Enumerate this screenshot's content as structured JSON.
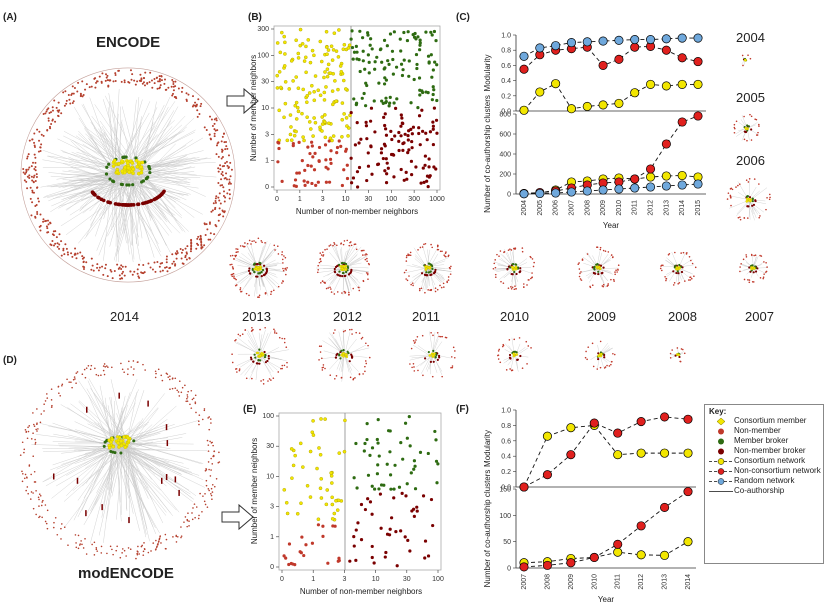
{
  "panel_labels": {
    "a": "(A)",
    "b": "(B)",
    "c": "(C)",
    "d": "(D)",
    "e": "(E)",
    "f": "(F)"
  },
  "titles": {
    "encode": "ENCODE",
    "modencode": "modENCODE"
  },
  "network_years": {
    "right_column": [
      "2004",
      "2005",
      "2006"
    ],
    "row_top": [
      "2014",
      "2013",
      "2012",
      "2011",
      "2010",
      "2009",
      "2008",
      "2007"
    ]
  },
  "colors": {
    "member": "#f2e600",
    "nonmember": "#c0392b",
    "member_broker": "#2e6b12",
    "nonmember_broker": "#7a0000",
    "random": "#6fa8dc",
    "edge": "#bdbdbd"
  },
  "panel_b": {
    "xlabel": "Number of non-member neighbors",
    "ylabel": "Number of member neighbors",
    "xticks": [
      "0",
      "1",
      "3",
      "10",
      "30",
      "100",
      "300",
      "1000"
    ],
    "yticks": [
      "0",
      "1",
      "3",
      "10",
      "30",
      "100",
      "300"
    ]
  },
  "panel_e": {
    "xlabel": "Number of non-member neighbors",
    "ylabel": "Number of member neighbors",
    "xticks": [
      "0",
      "1",
      "3",
      "10",
      "30",
      "100"
    ],
    "yticks": [
      "0",
      "1",
      "3",
      "10",
      "30",
      "100"
    ]
  },
  "chart_data": [
    {
      "type": "line",
      "panel": "C-top",
      "ylabel": "Modularity",
      "ylim": [
        0,
        1.0
      ],
      "yticks": [
        "0.0",
        "0.2",
        "0.4",
        "0.6",
        "0.8",
        "1.0"
      ],
      "x": [
        "2004",
        "2005",
        "2006",
        "2007",
        "2008",
        "2009",
        "2010",
        "2011",
        "2012",
        "2013",
        "2014",
        "2015"
      ],
      "series": [
        {
          "key": "consortium",
          "values": [
            0.01,
            0.25,
            0.36,
            0.03,
            0.06,
            0.08,
            0.1,
            0.24,
            0.35,
            0.33,
            0.35,
            0.35
          ]
        },
        {
          "key": "nonconsortium",
          "values": [
            0.55,
            0.74,
            0.8,
            0.82,
            0.84,
            0.6,
            0.68,
            0.84,
            0.85,
            0.8,
            0.7,
            0.65
          ]
        },
        {
          "key": "random",
          "values": [
            0.72,
            0.83,
            0.86,
            0.9,
            0.91,
            0.92,
            0.93,
            0.94,
            0.94,
            0.95,
            0.96,
            0.96
          ]
        }
      ]
    },
    {
      "type": "line",
      "panel": "C-bottom",
      "ylabel": "Number of co-authorship clusters",
      "xlabel": "Year",
      "ylim": [
        0,
        800
      ],
      "yticks": [
        "0",
        "200",
        "400",
        "600",
        "800"
      ],
      "x": [
        "2004",
        "2005",
        "2006",
        "2007",
        "2008",
        "2009",
        "2010",
        "2011",
        "2012",
        "2013",
        "2014",
        "2015"
      ],
      "series": [
        {
          "key": "consortium",
          "values": [
            5,
            10,
            40,
            120,
            130,
            150,
            160,
            150,
            170,
            180,
            185,
            170
          ]
        },
        {
          "key": "nonconsortium",
          "values": [
            5,
            15,
            30,
            60,
            90,
            110,
            120,
            150,
            250,
            500,
            720,
            780
          ]
        },
        {
          "key": "random",
          "values": [
            2,
            5,
            10,
            20,
            30,
            40,
            50,
            60,
            70,
            80,
            90,
            100
          ]
        }
      ]
    },
    {
      "type": "line",
      "panel": "F-top",
      "ylabel": "Modularity",
      "ylim": [
        0,
        1.0
      ],
      "yticks": [
        "0.0",
        "0.2",
        "0.4",
        "0.6",
        "0.8",
        "1.0"
      ],
      "x": [
        "2007",
        "2008",
        "2009",
        "2010",
        "2011",
        "2012",
        "2013",
        "2014"
      ],
      "series": [
        {
          "key": "consortium",
          "values": [
            0.0,
            0.66,
            0.77,
            0.8,
            0.42,
            0.44,
            0.44,
            0.44
          ]
        },
        {
          "key": "nonconsortium",
          "values": [
            0.0,
            0.16,
            0.42,
            0.83,
            0.7,
            0.85,
            0.91,
            0.88
          ]
        }
      ]
    },
    {
      "type": "line",
      "panel": "F-bottom",
      "ylabel": "Number of co-authorship clusters",
      "xlabel": "Year",
      "ylim": [
        0,
        150
      ],
      "yticks": [
        "0",
        "50",
        "100",
        "150"
      ],
      "x": [
        "2007",
        "2008",
        "2009",
        "2010",
        "2011",
        "2012",
        "2013",
        "2014"
      ],
      "series": [
        {
          "key": "consortium",
          "values": [
            10,
            12,
            18,
            20,
            30,
            25,
            24,
            50
          ]
        },
        {
          "key": "nonconsortium",
          "values": [
            2,
            5,
            10,
            20,
            45,
            80,
            115,
            145
          ]
        }
      ]
    }
  ],
  "key": {
    "title": "Key:",
    "items": [
      {
        "sym": "diamond-member",
        "label": "Consortium member"
      },
      {
        "sym": "dot-nonmember",
        "label": "Non-member"
      },
      {
        "sym": "dot-broker",
        "label": "Member broker"
      },
      {
        "sym": "dot-nmbroker",
        "label": "Non-member broker"
      },
      {
        "sym": "line-yellow",
        "label": "Consortium network"
      },
      {
        "sym": "line-red",
        "label": "Non-consortium network"
      },
      {
        "sym": "line-blue",
        "label": "Random network"
      },
      {
        "sym": "line-plain",
        "label": "Co-authorship"
      }
    ]
  }
}
